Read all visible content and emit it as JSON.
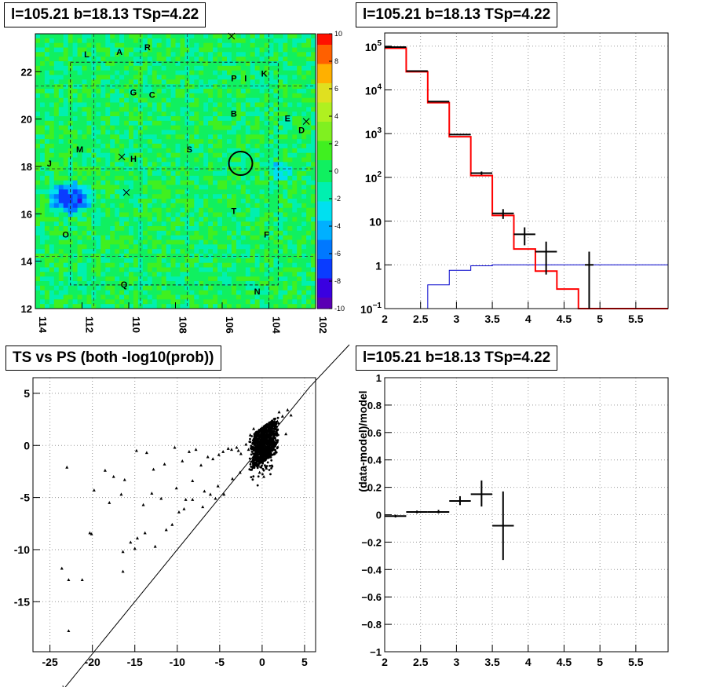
{
  "panels": {
    "map_title": "l=105.21 b=18.13 TSp=4.22",
    "spectrum_title": "l=105.21 b=18.13 TSp=4.22",
    "scatter_title": "TS vs PS (both -log10(prob))",
    "residual_title": "l=105.21 b=18.13 TSp=4.22"
  },
  "colors": {
    "data": "#000000",
    "model_total": "#ff0000",
    "model_background": "#0000cc"
  },
  "chart_data": [
    {
      "type": "heatmap",
      "title": "l=105.21 b=18.13 TSp=4.22",
      "xlim": [
        114,
        102
      ],
      "ylim": [
        12,
        23.6
      ],
      "x_ticks": [
        "114",
        "112",
        "110",
        "108",
        "106",
        "104",
        "102"
      ],
      "y_ticks": [
        "12",
        "14",
        "16",
        "18",
        "20",
        "22"
      ],
      "colorbar": {
        "min": -10,
        "max": 10,
        "ticks": [
          "10",
          "8",
          "6",
          "4",
          "2",
          "0",
          "-2",
          "-4",
          "-6",
          "-8",
          "-10"
        ]
      },
      "source_labels": [
        {
          "t": "L",
          "l": 111.8,
          "b": 22.6
        },
        {
          "t": "A",
          "l": 110.4,
          "b": 22.7
        },
        {
          "t": "R",
          "l": 109.2,
          "b": 22.9
        },
        {
          "t": "P",
          "l": 105.5,
          "b": 21.6
        },
        {
          "t": "I",
          "l": 105.0,
          "b": 21.6
        },
        {
          "t": "K",
          "l": 104.2,
          "b": 21.8
        },
        {
          "t": "G",
          "l": 109.8,
          "b": 21.0
        },
        {
          "t": "C",
          "l": 109.0,
          "b": 20.9
        },
        {
          "t": "B",
          "l": 105.5,
          "b": 20.1
        },
        {
          "t": "E",
          "l": 103.2,
          "b": 19.9
        },
        {
          "t": "D",
          "l": 102.6,
          "b": 19.4
        },
        {
          "t": "M",
          "l": 112.1,
          "b": 18.6
        },
        {
          "t": "H",
          "l": 109.8,
          "b": 18.2
        },
        {
          "t": "S",
          "l": 107.4,
          "b": 18.6
        },
        {
          "t": "J",
          "l": 113.4,
          "b": 18.0
        },
        {
          "t": "T",
          "l": 105.5,
          "b": 16.0
        },
        {
          "t": "F",
          "l": 104.1,
          "b": 15.0
        },
        {
          "t": "O",
          "l": 112.7,
          "b": 15.0
        },
        {
          "t": "Q",
          "l": 110.2,
          "b": 12.9
        },
        {
          "t": "N",
          "l": 104.5,
          "b": 12.6
        }
      ],
      "source_marker": {
        "l": 105.21,
        "b": 18.13
      },
      "cross_marks": [
        {
          "l": 105.6,
          "b": 23.5
        },
        {
          "l": 102.4,
          "b": 19.9
        },
        {
          "l": 110.3,
          "b": 18.4
        },
        {
          "l": 110.1,
          "b": 16.9
        }
      ]
    },
    {
      "type": "line",
      "title": "l=105.21 b=18.13 TSp=4.22",
      "xlim": [
        2,
        5.95
      ],
      "ylim": [
        0.1,
        200000
      ],
      "yscale": "log",
      "x_ticks": [
        "2",
        "2.5",
        "3",
        "3.5",
        "4",
        "4.5",
        "5",
        "5.5"
      ],
      "y_ticks": [
        {
          "v": 0.1,
          "l": "10",
          "sup": "−1"
        },
        {
          "v": 1,
          "l": "1"
        },
        {
          "v": 10,
          "l": "10"
        },
        {
          "v": 100,
          "l": "10",
          "sup": "2"
        },
        {
          "v": 1000,
          "l": "10",
          "sup": "3"
        },
        {
          "v": 10000,
          "l": "10",
          "sup": "4"
        },
        {
          "v": 100000,
          "l": "10",
          "sup": "5"
        }
      ],
      "bin_edges": [
        2.0,
        2.3,
        2.6,
        2.9,
        3.2,
        3.5,
        3.8,
        4.1,
        4.4,
        4.7,
        5.95
      ],
      "series": [
        {
          "kind": "data",
          "x": [
            2.15,
            2.45,
            2.75,
            3.05,
            3.35,
            3.65,
            3.95,
            4.25,
            4.85
          ],
          "y": [
            95000,
            27000,
            5400,
            950,
            125,
            15,
            5,
            2,
            1
          ],
          "ylo": [
            94700,
            26800,
            5320,
            920,
            114,
            11.2,
            2.8,
            0.6,
            0.1
          ],
          "yhi": [
            95300,
            27200,
            5480,
            980,
            136,
            18.8,
            7.2,
            3.4,
            2
          ],
          "xerr": [
            0.15,
            0.15,
            0.15,
            0.15,
            0.15,
            0.15,
            0.15,
            0.15,
            0.06
          ]
        },
        {
          "kind": "model_total",
          "y": [
            90000,
            26000,
            5100,
            850,
            110,
            13.5,
            2.3,
            0.72,
            0.28,
            0.1
          ]
        },
        {
          "kind": "model_background",
          "y": [
            0,
            0,
            0.35,
            0.75,
            0.95,
            1.0,
            1.0,
            1.0,
            1.0,
            1.0
          ]
        }
      ]
    },
    {
      "type": "scatter",
      "title": "TS vs PS (both -log10(prob))",
      "xlim": [
        -27,
        6.3
      ],
      "ylim": [
        -19.8,
        6.5
      ],
      "x_ticks": [
        "-25",
        "-20",
        "-15",
        "-10",
        "-5",
        "0",
        "5"
      ],
      "y_ticks": [
        "-15",
        "-10",
        "-5",
        "0",
        "5"
      ],
      "reference_line": {
        "slope": 1,
        "intercept": 0
      },
      "points": [
        [
          -23,
          -2.1
        ],
        [
          -18.5,
          -2.4
        ],
        [
          -17.5,
          -3.0
        ],
        [
          -16.2,
          -3.3
        ],
        [
          -14.8,
          -0.5
        ],
        [
          -13.6,
          -0.7
        ],
        [
          -12.8,
          -2.3
        ],
        [
          -11.5,
          -1.8
        ],
        [
          -10.3,
          -0.2
        ],
        [
          -9.4,
          -1.5
        ],
        [
          -8.6,
          -0.6
        ],
        [
          -7.8,
          -0.4
        ],
        [
          -7.2,
          -1.9
        ],
        [
          -6.4,
          -1.1
        ],
        [
          -5.8,
          -1.3
        ],
        [
          -5.1,
          -0.9
        ],
        [
          -4.6,
          -0.6
        ],
        [
          -4.0,
          -0.3
        ],
        [
          -3.6,
          -0.4
        ],
        [
          -3.0,
          -0.2
        ],
        [
          -2.8,
          -0.5
        ],
        [
          -2.5,
          -0.8
        ],
        [
          -19.8,
          -4.3
        ],
        [
          -18.0,
          -5.5
        ],
        [
          -16.6,
          -4.7
        ],
        [
          -14.0,
          -5.7
        ],
        [
          -13.0,
          -4.6
        ],
        [
          -11.9,
          -5.1
        ],
        [
          -10.1,
          -4.1
        ],
        [
          -9.0,
          -5.2
        ],
        [
          -8.2,
          -3.4
        ],
        [
          -6.8,
          -4.4
        ],
        [
          -5.5,
          -5.1
        ],
        [
          -4.5,
          -4.7
        ],
        [
          -3.5,
          -3.2
        ],
        [
          -2.6,
          -2.6
        ],
        [
          -15.5,
          -9.3
        ],
        [
          -14.7,
          -8.9
        ],
        [
          -13.8,
          -8.4
        ],
        [
          -12.6,
          -9.7
        ],
        [
          -11.3,
          -8.1
        ],
        [
          -10.6,
          -7.6
        ],
        [
          -9.8,
          -6.4
        ],
        [
          -9.2,
          -6.1
        ],
        [
          -8.2,
          -5.2
        ],
        [
          -7.0,
          -5.9
        ],
        [
          -6.1,
          -4.7
        ],
        [
          -5.2,
          -3.9
        ],
        [
          -20.3,
          -8.4
        ],
        [
          -20.1,
          -8.5
        ],
        [
          -16.4,
          -10.2
        ],
        [
          -15.0,
          -9.9
        ],
        [
          -23.6,
          -11.8
        ],
        [
          -22.8,
          -12.9
        ],
        [
          -21.2,
          -12.9
        ],
        [
          -16.4,
          -12.1
        ],
        [
          -22.8,
          -17.8
        ],
        [
          -1.4,
          1.0
        ],
        [
          -1.0,
          1.6
        ],
        [
          -0.8,
          -0.9
        ],
        [
          -0.5,
          -1.9
        ],
        [
          -0.3,
          -2.6
        ],
        [
          0.2,
          -3.0
        ],
        [
          0.5,
          -2.2
        ],
        [
          -1.6,
          -0.4
        ],
        [
          -1.9,
          0.1
        ],
        [
          1.8,
          2.3
        ],
        [
          2.4,
          2.8
        ],
        [
          3.0,
          3.4
        ],
        [
          3.4,
          2.9
        ],
        [
          2.0,
          3.2
        ],
        [
          1.6,
          -0.6
        ],
        [
          2.8,
          1.1
        ]
      ]
    },
    {
      "type": "scatter",
      "title": "l=105.21 b=18.13 TSp=4.22",
      "xlim": [
        2,
        5.95
      ],
      "ylim": [
        -1,
        1
      ],
      "ylabel": "(data-model)/model",
      "x_ticks": [
        "2",
        "2.5",
        "3",
        "3.5",
        "4",
        "4.5",
        "5",
        "5.5"
      ],
      "y_ticks": [
        "1",
        "0.8",
        "0.6",
        "0.4",
        "0.2",
        "0",
        "−0.2",
        "−0.4",
        "−0.6",
        "−0.8",
        "−1"
      ],
      "points": [
        {
          "x": 2.15,
          "y": -0.01,
          "ylo": -0.02,
          "yhi": 0.0,
          "xerr": 0.15
        },
        {
          "x": 2.45,
          "y": 0.02,
          "ylo": 0.01,
          "yhi": 0.03,
          "xerr": 0.15
        },
        {
          "x": 2.75,
          "y": 0.02,
          "ylo": 0.01,
          "yhi": 0.035,
          "xerr": 0.15
        },
        {
          "x": 3.05,
          "y": 0.1,
          "ylo": 0.07,
          "yhi": 0.135,
          "xerr": 0.15
        },
        {
          "x": 3.35,
          "y": 0.15,
          "ylo": 0.06,
          "yhi": 0.25,
          "xerr": 0.15
        },
        {
          "x": 3.65,
          "y": -0.08,
          "ylo": -0.33,
          "yhi": 0.17,
          "xerr": 0.15
        }
      ]
    }
  ]
}
